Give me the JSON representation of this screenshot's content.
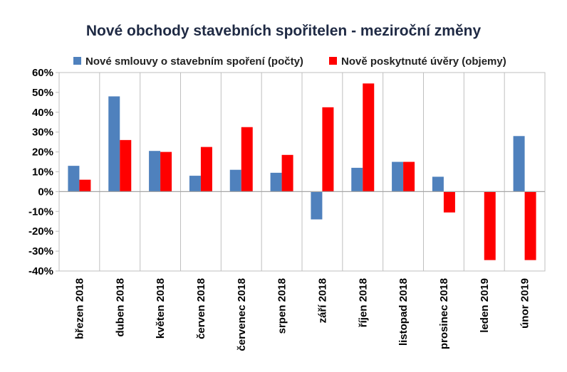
{
  "chart_data": {
    "type": "bar",
    "title": "Nové obchody stavebních spořitelen - meziroční změny",
    "categories": [
      "březen 2018",
      "duben 2018",
      "květen 2018",
      "červen 2018",
      "červenec 2018",
      "srpen 2018",
      "září 2018",
      "říjen 2018",
      "listopad 2018",
      "prosinec 2018",
      "leden 2019",
      "únor 2019"
    ],
    "series": [
      {
        "name": "Nové smlouvy o stavebním spoření (počty)",
        "color": "#4f81bd",
        "values": [
          13,
          48,
          20.5,
          8,
          11,
          9.5,
          -14,
          12,
          15,
          7.5,
          0,
          28
        ]
      },
      {
        "name": "Nově poskytnuté úvěry (objemy)",
        "color": "#ff0000",
        "values": [
          6,
          26,
          20,
          22.5,
          32.5,
          18.5,
          42.5,
          54.5,
          15,
          -10.5,
          -34.5,
          -34.5
        ]
      }
    ],
    "yticks": [
      "60%",
      "50%",
      "40%",
      "30%",
      "20%",
      "10%",
      "0%",
      "-10%",
      "-20%",
      "-30%",
      "-40%"
    ],
    "ylim": [
      -40,
      60
    ],
    "xlabel": "",
    "ylabel": "",
    "grid": "vertical category separators",
    "legend": "top"
  }
}
